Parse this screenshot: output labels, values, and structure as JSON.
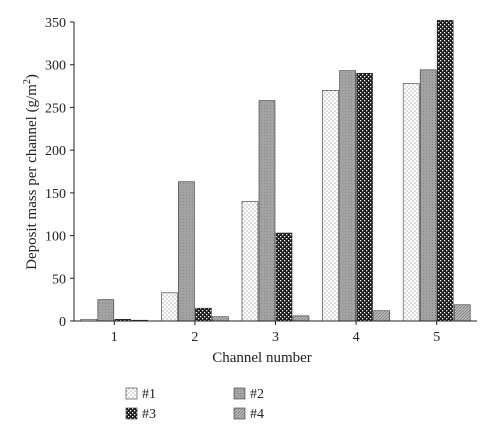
{
  "chart_data": {
    "type": "bar",
    "categories": [
      "1",
      "2",
      "3",
      "4",
      "5"
    ],
    "series": [
      {
        "name": "#1",
        "values": [
          2,
          33,
          140,
          270,
          278
        ],
        "pattern": "dots"
      },
      {
        "name": "#2",
        "values": [
          25,
          163,
          258,
          293,
          294
        ],
        "pattern": "gray"
      },
      {
        "name": "#3",
        "values": [
          2,
          15,
          103,
          290,
          352
        ],
        "pattern": "checker"
      },
      {
        "name": "#4",
        "values": [
          0.5,
          5,
          6,
          12,
          19
        ],
        "pattern": "hatch"
      }
    ],
    "xlabel": "Channel number",
    "ylabel": {
      "main": "Deposit mass per channel (g/m",
      "sup": "2",
      "close": ")"
    },
    "ylim": [
      0,
      350
    ],
    "yticks": [
      "0",
      "50",
      "100",
      "150",
      "200",
      "250",
      "300",
      "350"
    ],
    "grid": false,
    "legend_position": "bottom"
  }
}
